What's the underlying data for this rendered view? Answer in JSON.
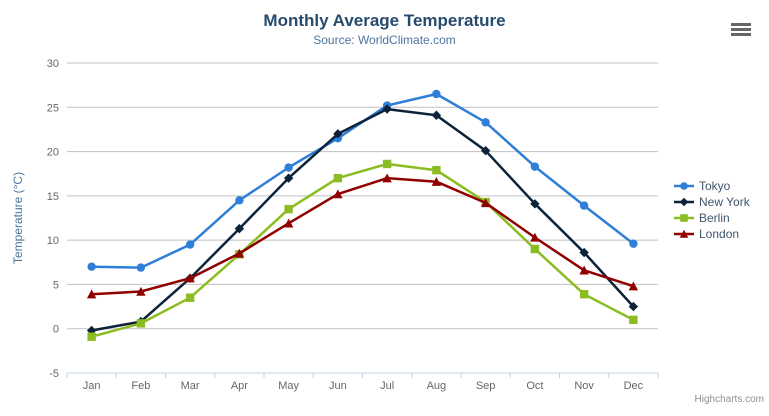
{
  "header": {
    "title": "Monthly Average Temperature",
    "subtitle": "Source: WorldClimate.com"
  },
  "credits_label": "Highcharts.com",
  "colors": {
    "title": "#274b6d",
    "subtitle": "#4d759e",
    "axis_title": "#4d759e",
    "axis_labels": "#666666",
    "grid_line": "#c0c0c0",
    "axis_line": "#c0d0e0",
    "legend_text": "#3e576f",
    "credits": "#909090",
    "menu_icon": "#666666"
  },
  "chart_data": {
    "type": "line",
    "title": "Monthly Average Temperature",
    "subtitle": "Source: WorldClimate.com",
    "xlabel": "",
    "ylabel": "Temperature (°C)",
    "categories": [
      "Jan",
      "Feb",
      "Mar",
      "Apr",
      "May",
      "Jun",
      "Jul",
      "Aug",
      "Sep",
      "Oct",
      "Nov",
      "Dec"
    ],
    "series": [
      {
        "name": "Tokyo",
        "color": "#2f7ed8",
        "marker": "circle",
        "values": [
          7.0,
          6.9,
          9.5,
          14.5,
          18.2,
          21.5,
          25.2,
          26.5,
          23.3,
          18.3,
          13.9,
          9.6
        ]
      },
      {
        "name": "New York",
        "color": "#0d233a",
        "marker": "diamond",
        "values": [
          -0.2,
          0.8,
          5.7,
          11.3,
          17.0,
          22.0,
          24.8,
          24.1,
          20.1,
          14.1,
          8.6,
          2.5
        ]
      },
      {
        "name": "Berlin",
        "color": "#8bbc21",
        "marker": "square",
        "values": [
          -0.9,
          0.6,
          3.5,
          8.4,
          13.5,
          17.0,
          18.6,
          17.9,
          14.3,
          9.0,
          3.9,
          1.0
        ]
      },
      {
        "name": "London",
        "color": "#910000",
        "marker": "triangle",
        "values": [
          3.9,
          4.2,
          5.7,
          8.5,
          11.9,
          15.2,
          17.0,
          16.6,
          14.2,
          10.3,
          6.6,
          4.8
        ]
      }
    ],
    "ylim": [
      -5,
      30
    ],
    "ytick_step": 5,
    "grid": true,
    "legend_position": "right"
  }
}
